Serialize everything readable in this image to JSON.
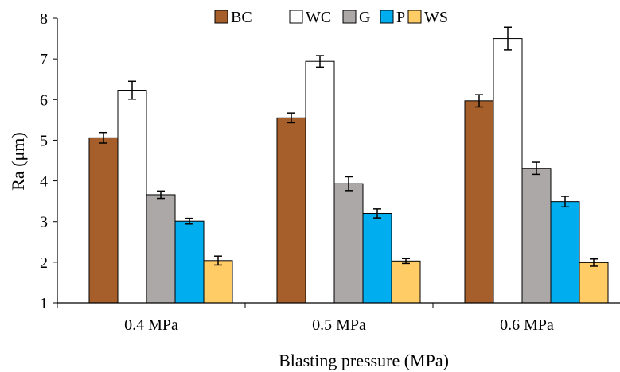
{
  "chart_data": {
    "type": "bar",
    "title": "",
    "xlabel": "Blasting pressure (MPa)",
    "ylabel": "Ra (μm)",
    "ylim": [
      1,
      8
    ],
    "yticks": [
      "1",
      "2",
      "3",
      "4",
      "5",
      "6",
      "7",
      "8"
    ],
    "grid": false,
    "legend_position": "top",
    "categories": [
      "0.4 MPa",
      "0.5 MPa",
      "0.6 MPa"
    ],
    "series": [
      {
        "name": "BC",
        "color": "#A65F2B",
        "values": [
          5.06,
          5.55,
          5.97
        ],
        "errors": [
          0.13,
          0.12,
          0.15
        ]
      },
      {
        "name": "WC",
        "color": "#FFFFFF",
        "values": [
          6.23,
          6.94,
          7.5
        ],
        "errors": [
          0.22,
          0.14,
          0.28
        ]
      },
      {
        "name": "G",
        "color": "#ABA8A7",
        "values": [
          3.66,
          3.93,
          4.31
        ],
        "errors": [
          0.09,
          0.17,
          0.15
        ]
      },
      {
        "name": "P",
        "color": "#00AEEF",
        "values": [
          3.01,
          3.2,
          3.49
        ],
        "errors": [
          0.07,
          0.11,
          0.13
        ]
      },
      {
        "name": "WS",
        "color": "#FFCC66",
        "values": [
          2.04,
          2.03,
          1.99
        ],
        "errors": [
          0.11,
          0.06,
          0.09
        ]
      }
    ]
  }
}
